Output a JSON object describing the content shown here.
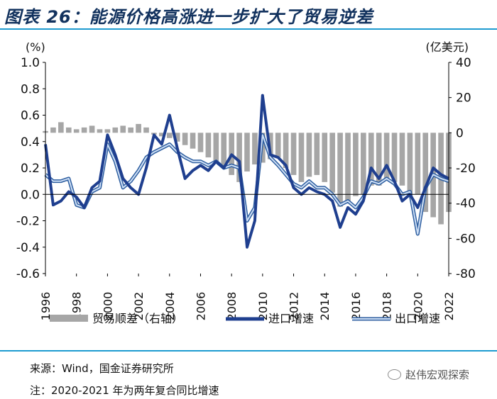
{
  "header": {
    "title": "图表 26：能源价格高涨进一步扩大了贸易逆差"
  },
  "footer": {
    "source": "来源：Wind，国金证券研究所",
    "note": "注：2020-2021 年为两年复合同比增速",
    "wechat": "赵伟宏观探索"
  },
  "chart_data": {
    "type": "line",
    "left_unit": "(%)",
    "right_unit": "(亿美元)",
    "ylim_left": [
      -0.6,
      1.0
    ],
    "ylim_right": [
      -80,
      40
    ],
    "y_ticks_left": [
      "1.0",
      "0.8",
      "0.6",
      "0.4",
      "0.2",
      "0.0",
      "-0.2",
      "-0.4",
      "-0.6"
    ],
    "y_ticks_right": [
      "40",
      "20",
      "0",
      "-20",
      "-40",
      "-60",
      "-80"
    ],
    "x_ticks": [
      "1996",
      "1998",
      "2000",
      "2002",
      "2004",
      "2006",
      "2008",
      "2010",
      "2012",
      "2014",
      "2016",
      "2018",
      "2020",
      "2022"
    ],
    "legend": [
      "贸易顺差（右轴）",
      "进口增速",
      "出口增速"
    ],
    "colors": {
      "trade": "#a6a6a6",
      "import": "#1f3f8f",
      "export": "#6fa0d8"
    },
    "series": [
      {
        "name": "贸易顺差（右轴）",
        "type": "bar",
        "axis": "right",
        "x": [
          1996.0,
          1996.5,
          1997.0,
          1997.5,
          1998.0,
          1998.5,
          1999.0,
          1999.5,
          2000.0,
          2000.5,
          2001.0,
          2001.5,
          2002.0,
          2002.5,
          2003.0,
          2003.5,
          2004.0,
          2004.5,
          2005.0,
          2005.5,
          2006.0,
          2006.5,
          2007.0,
          2007.5,
          2008.0,
          2008.5,
          2009.0,
          2009.5,
          2010.0,
          2010.5,
          2011.0,
          2011.5,
          2012.0,
          2012.5,
          2013.0,
          2013.5,
          2014.0,
          2014.5,
          2015.0,
          2015.5,
          2016.0,
          2016.5,
          2017.0,
          2017.5,
          2018.0,
          2018.5,
          2019.0,
          2019.5,
          2020.0,
          2020.5,
          2021.0,
          2021.5,
          2022.0
        ],
        "values": [
          1,
          3,
          6,
          3,
          2,
          3,
          4,
          2,
          2,
          3,
          4,
          3,
          5,
          3,
          -1,
          -2,
          -3,
          -5,
          -7,
          -9,
          -11,
          -14,
          -16,
          -20,
          -24,
          -28,
          -22,
          -18,
          -17,
          -15,
          -14,
          -20,
          -24,
          -28,
          -25,
          -24,
          -28,
          -34,
          -42,
          -40,
          -36,
          -35,
          -30,
          -30,
          -26,
          -28,
          -30,
          -35,
          -35,
          -45,
          -48,
          -52,
          -45
        ]
      },
      {
        "name": "进口增速",
        "type": "line",
        "axis": "left",
        "x": [
          1996.0,
          1996.5,
          1997.0,
          1997.5,
          1998.0,
          1998.5,
          1999.0,
          1999.5,
          2000.0,
          2000.5,
          2001.0,
          2001.5,
          2002.0,
          2002.5,
          2003.0,
          2003.5,
          2004.0,
          2004.5,
          2005.0,
          2005.5,
          2006.0,
          2006.5,
          2007.0,
          2007.5,
          2008.0,
          2008.5,
          2009.0,
          2009.5,
          2010.0,
          2010.5,
          2011.0,
          2011.5,
          2012.0,
          2012.5,
          2013.0,
          2013.5,
          2014.0,
          2014.5,
          2015.0,
          2015.5,
          2016.0,
          2016.5,
          2017.0,
          2017.5,
          2018.0,
          2018.5,
          2019.0,
          2019.5,
          2020.0,
          2020.5,
          2021.0,
          2021.5,
          2022.0
        ],
        "values": [
          0.38,
          -0.08,
          -0.05,
          0.02,
          -0.02,
          -0.1,
          0.05,
          0.1,
          0.45,
          0.3,
          0.12,
          0.05,
          0.0,
          0.2,
          0.45,
          0.38,
          0.6,
          0.35,
          0.12,
          0.18,
          0.22,
          0.18,
          0.25,
          0.2,
          0.3,
          0.25,
          -0.4,
          -0.2,
          0.75,
          0.3,
          0.28,
          0.22,
          0.05,
          0.0,
          0.05,
          0.02,
          0.0,
          -0.05,
          -0.25,
          -0.1,
          -0.15,
          -0.05,
          0.2,
          0.12,
          0.22,
          0.1,
          -0.05,
          0.0,
          -0.1,
          0.05,
          0.2,
          0.15,
          0.12
        ]
      },
      {
        "name": "出口增速",
        "type": "line",
        "axis": "left",
        "x": [
          1996.0,
          1996.5,
          1997.0,
          1997.5,
          1998.0,
          1998.5,
          1999.0,
          1999.5,
          2000.0,
          2000.5,
          2001.0,
          2001.5,
          2002.0,
          2002.5,
          2003.0,
          2003.5,
          2004.0,
          2004.5,
          2005.0,
          2005.5,
          2006.0,
          2006.5,
          2007.0,
          2007.5,
          2008.0,
          2008.5,
          2009.0,
          2009.5,
          2010.0,
          2010.5,
          2011.0,
          2011.5,
          2012.0,
          2012.5,
          2013.0,
          2013.5,
          2014.0,
          2014.5,
          2015.0,
          2015.5,
          2016.0,
          2016.5,
          2017.0,
          2017.5,
          2018.0,
          2018.5,
          2019.0,
          2019.5,
          2020.0,
          2020.5,
          2021.0,
          2021.5,
          2022.0
        ],
        "values": [
          0.15,
          0.1,
          0.1,
          0.12,
          -0.08,
          -0.1,
          0.02,
          0.05,
          0.38,
          0.25,
          0.05,
          0.1,
          0.18,
          0.28,
          0.32,
          0.35,
          0.38,
          0.32,
          0.28,
          0.25,
          0.25,
          0.22,
          0.25,
          0.2,
          0.22,
          0.2,
          -0.2,
          -0.1,
          0.45,
          0.28,
          0.22,
          0.15,
          0.08,
          0.05,
          0.1,
          0.05,
          0.05,
          0.0,
          -0.08,
          -0.05,
          -0.1,
          -0.02,
          0.1,
          0.08,
          0.12,
          0.08,
          0.0,
          0.02,
          -0.3,
          0.05,
          0.15,
          0.12,
          0.1
        ]
      }
    ]
  }
}
